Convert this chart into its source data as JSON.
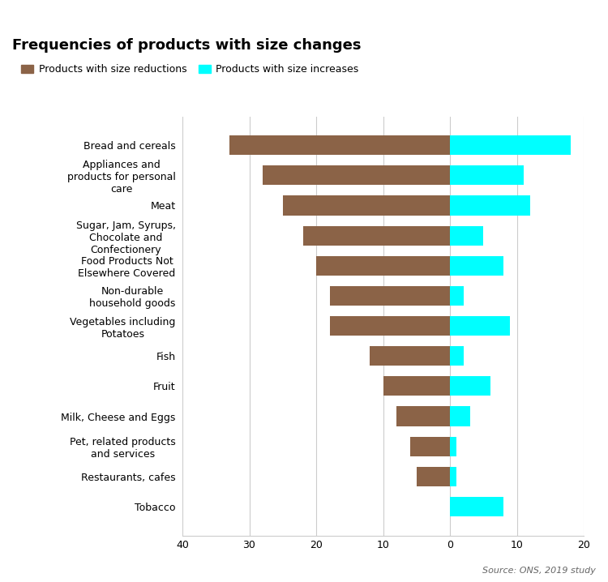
{
  "title": "Frequencies of products with size changes",
  "categories": [
    "Bread and cereals",
    "Appliances and\nproducts for personal\ncare",
    "Meat",
    "Sugar, Jam, Syrups,\nChocolate and\nConfectionery",
    "Food Products Not\nElsewhere Covered",
    "Non-durable\nhousehold goods",
    "Vegetables including\nPotatoes",
    "Fish",
    "Fruit",
    "Milk, Cheese and Eggs",
    "Pet, related products\nand services",
    "Restaurants, cafes",
    "Tobacco"
  ],
  "reductions": [
    33,
    28,
    25,
    22,
    20,
    18,
    18,
    12,
    10,
    8,
    6,
    5,
    0
  ],
  "increases": [
    18,
    11,
    12,
    5,
    8,
    2,
    9,
    2,
    6,
    3,
    1,
    1,
    8
  ],
  "reduction_color": "#8B6347",
  "increase_color": "#00FFFF",
  "xlim_left": -40,
  "xlim_right": 20,
  "xticks": [
    -40,
    -30,
    -20,
    -10,
    0,
    10,
    20
  ],
  "xticklabels": [
    "40",
    "30",
    "20",
    "10",
    "0",
    "10",
    "20"
  ],
  "legend_reduction": "Products with size reductions",
  "legend_increase": "Products with size increases",
  "source_text": "Source: ONS, 2019 study",
  "background_color": "#ffffff",
  "grid_color": "#cccccc",
  "bar_height": 0.65,
  "title_fontsize": 13,
  "legend_fontsize": 9,
  "tick_fontsize": 9,
  "ylabel_fontsize": 9
}
